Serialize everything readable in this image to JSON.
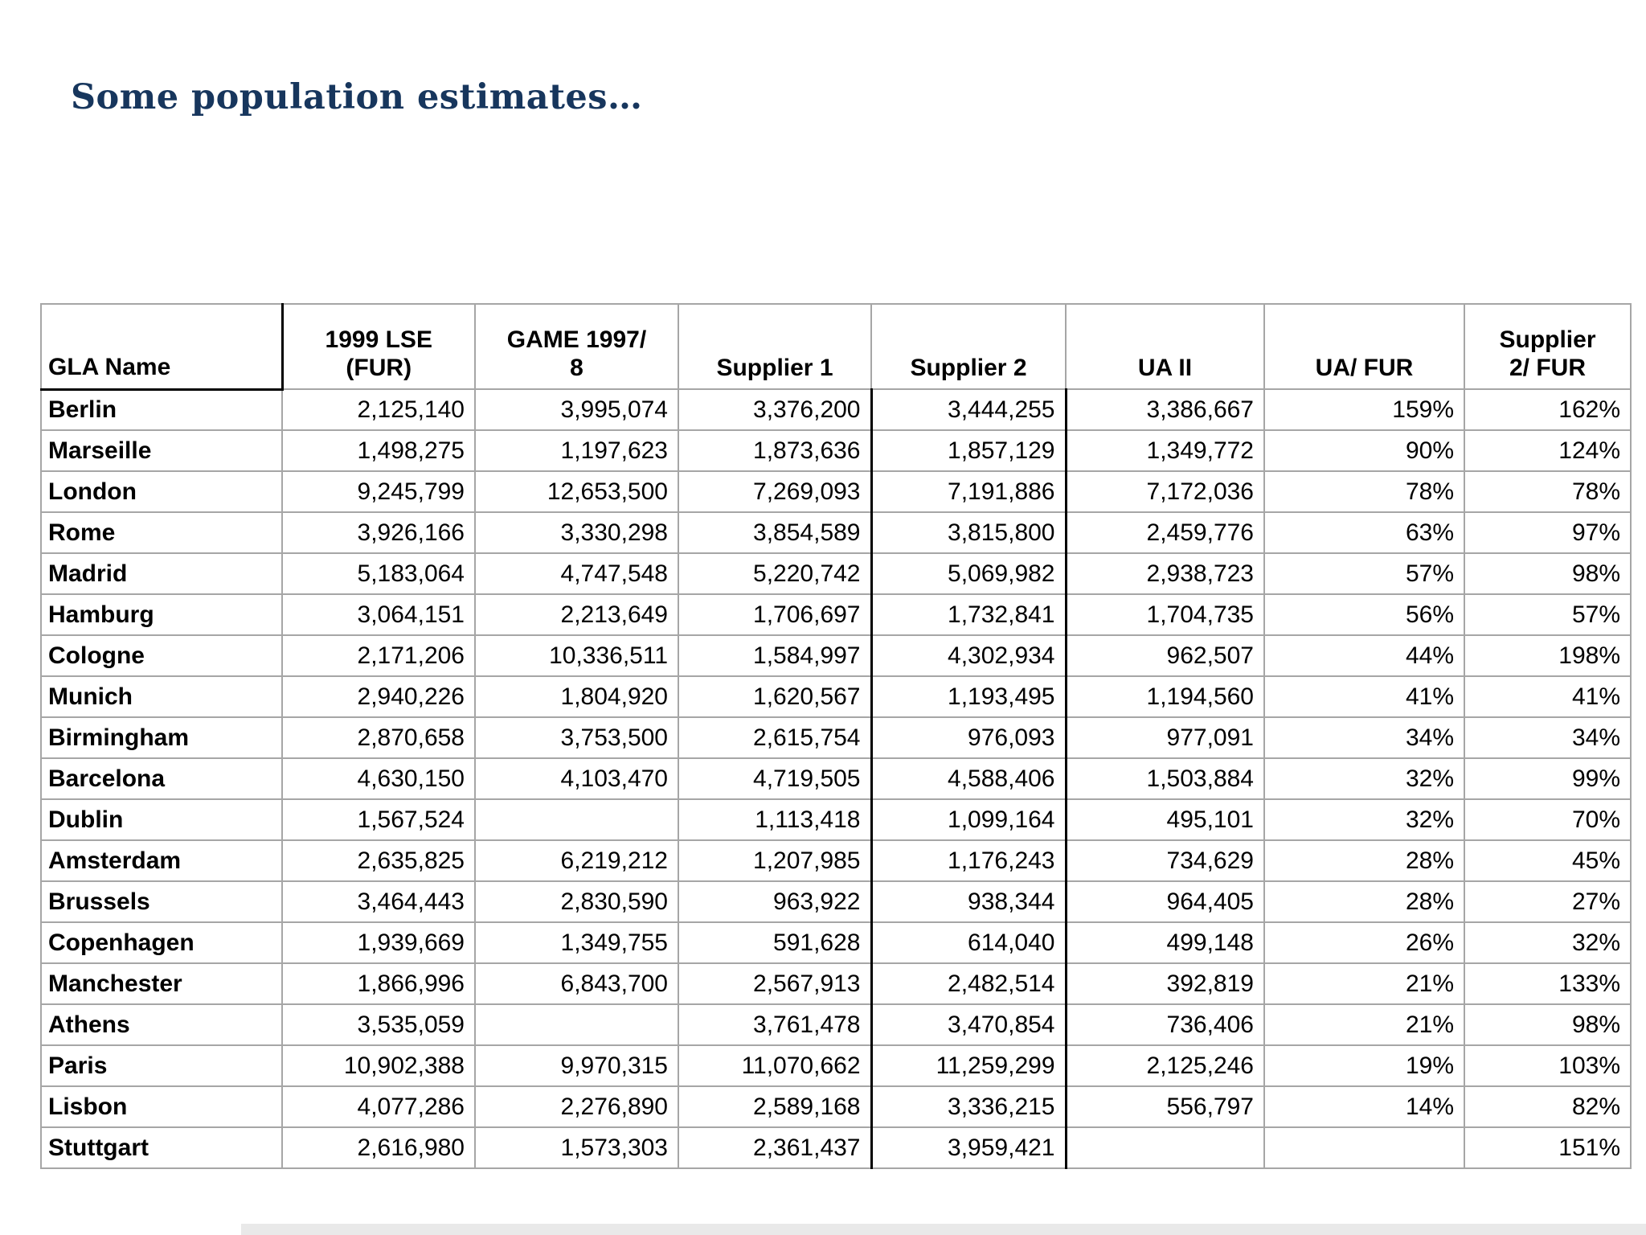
{
  "title": "Some population estimates…",
  "table": {
    "header": [
      {
        "lines": [
          "GLA Name"
        ]
      },
      {
        "lines": [
          "1999 LSE",
          "(FUR)"
        ]
      },
      {
        "lines": [
          "GAME 1997/",
          "8"
        ]
      },
      {
        "lines": [
          "Supplier 1"
        ]
      },
      {
        "lines": [
          "Supplier 2"
        ]
      },
      {
        "lines": [
          "UA II"
        ]
      },
      {
        "lines": [
          "UA/ FUR"
        ]
      },
      {
        "lines": [
          "Supplier",
          "2/ FUR"
        ]
      }
    ],
    "rows": [
      [
        "Berlin",
        "2,125,140",
        "3,995,074",
        "3,376,200",
        "3,444,255",
        "3,386,667",
        "159%",
        "162%"
      ],
      [
        "Marseille",
        "1,498,275",
        "1,197,623",
        "1,873,636",
        "1,857,129",
        "1,349,772",
        "90%",
        "124%"
      ],
      [
        "London",
        "9,245,799",
        "12,653,500",
        "7,269,093",
        "7,191,886",
        "7,172,036",
        "78%",
        "78%"
      ],
      [
        "Rome",
        "3,926,166",
        "3,330,298",
        "3,854,589",
        "3,815,800",
        "2,459,776",
        "63%",
        "97%"
      ],
      [
        "Madrid",
        "5,183,064",
        "4,747,548",
        "5,220,742",
        "5,069,982",
        "2,938,723",
        "57%",
        "98%"
      ],
      [
        "Hamburg",
        "3,064,151",
        "2,213,649",
        "1,706,697",
        "1,732,841",
        "1,704,735",
        "56%",
        "57%"
      ],
      [
        "Cologne",
        "2,171,206",
        "10,336,511",
        "1,584,997",
        "4,302,934",
        "962,507",
        "44%",
        "198%"
      ],
      [
        "Munich",
        "2,940,226",
        "1,804,920",
        "1,620,567",
        "1,193,495",
        "1,194,560",
        "41%",
        "41%"
      ],
      [
        "Birmingham",
        "2,870,658",
        "3,753,500",
        "2,615,754",
        "976,093",
        "977,091",
        "34%",
        "34%"
      ],
      [
        "Barcelona",
        "4,630,150",
        "4,103,470",
        "4,719,505",
        "4,588,406",
        "1,503,884",
        "32%",
        "99%"
      ],
      [
        "Dublin",
        "1,567,524",
        "",
        "1,113,418",
        "1,099,164",
        "495,101",
        "32%",
        "70%"
      ],
      [
        "Amsterdam",
        "2,635,825",
        "6,219,212",
        "1,207,985",
        "1,176,243",
        "734,629",
        "28%",
        "45%"
      ],
      [
        "Brussels",
        "3,464,443",
        "2,830,590",
        "963,922",
        "938,344",
        "964,405",
        "28%",
        "27%"
      ],
      [
        "Copenhagen",
        "1,939,669",
        "1,349,755",
        "591,628",
        "614,040",
        "499,148",
        "26%",
        "32%"
      ],
      [
        "Manchester",
        "1,866,996",
        "6,843,700",
        "2,567,913",
        "2,482,514",
        "392,819",
        "21%",
        "133%"
      ],
      [
        "Athens",
        "3,535,059",
        "",
        "3,761,478",
        "3,470,854",
        "736,406",
        "21%",
        "98%"
      ],
      [
        "Paris",
        "10,902,388",
        "9,970,315",
        "11,070,662",
        "11,259,299",
        "2,125,246",
        "19%",
        "103%"
      ],
      [
        "Lisbon",
        "4,077,286",
        "2,276,890",
        "2,589,168",
        "3,336,215",
        "556,797",
        "14%",
        "82%"
      ],
      [
        "Stuttgart",
        "2,616,980",
        "1,573,303",
        "2,361,437",
        "3,959,421",
        "",
        "",
        "151%"
      ]
    ]
  },
  "colors": {
    "title_text": "#17365d",
    "grid_line": "#a6a6a6",
    "emphasis_border": "#000000",
    "bottom_strip": "#e9e9e9"
  }
}
